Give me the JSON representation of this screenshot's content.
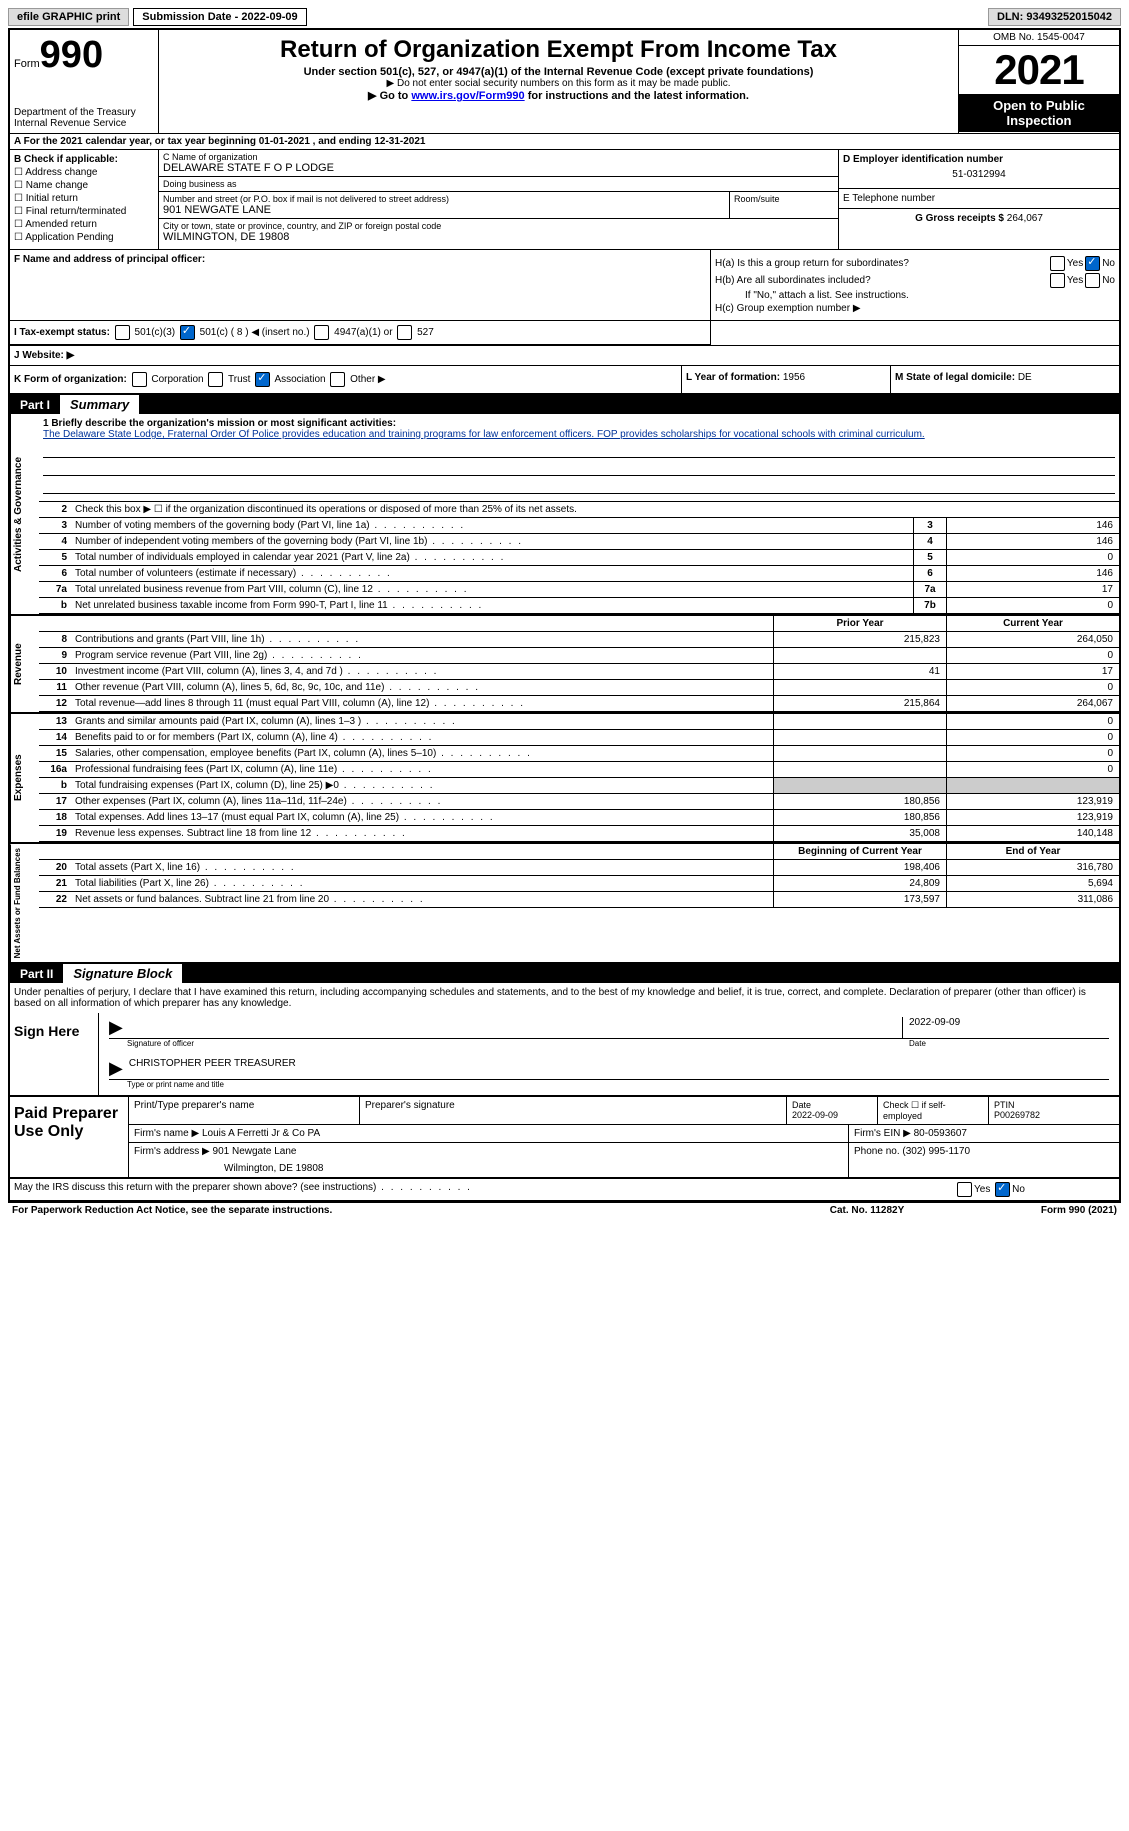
{
  "topbar": {
    "efile": "efile GRAPHIC print",
    "subdate_label": "Submission Date - ",
    "subdate": "2022-09-09",
    "dln_label": "DLN: ",
    "dln": "93493252015042"
  },
  "header": {
    "form_small": "Form",
    "form_big": "990",
    "dept": "Department of the Treasury\nInternal Revenue Service",
    "title": "Return of Organization Exempt From Income Tax",
    "sub1": "Under section 501(c), 527, or 4947(a)(1) of the Internal Revenue Code (except private foundations)",
    "sub2": "▶ Do not enter social security numbers on this form as it may be made public.",
    "sub3a": "▶ Go to ",
    "sub3b": "www.irs.gov/Form990",
    "sub3c": " for instructions and the latest information.",
    "omb": "OMB No. 1545-0047",
    "year": "2021",
    "open": "Open to Public Inspection"
  },
  "rowA": "A For the 2021 calendar year, or tax year beginning 01-01-2021   , and ending 12-31-2021",
  "colB": {
    "hdr": "B Check if applicable:",
    "items": [
      "Address change",
      "Name change",
      "Initial return",
      "Final return/terminated",
      "Amended return",
      "Application Pending"
    ]
  },
  "colC": {
    "name_lbl": "C Name of organization",
    "name": "DELAWARE STATE F O P LODGE",
    "dba_lbl": "Doing business as",
    "dba": "",
    "street_lbl": "Number and street (or P.O. box if mail is not delivered to street address)",
    "street": "901 NEWGATE LANE",
    "room_lbl": "Room/suite",
    "city_lbl": "City or town, state or province, country, and ZIP or foreign postal code",
    "city": "WILMINGTON, DE   19808"
  },
  "colD": {
    "ein_lbl": "D Employer identification number",
    "ein": "51-0312994",
    "phone_lbl": "E Telephone number",
    "phone": "",
    "gross_lbl": "G Gross receipts $ ",
    "gross": "264,067"
  },
  "rowF": {
    "lbl": "F Name and address of principal officer:",
    "val": ""
  },
  "rowH": {
    "a": "H(a)  Is this a group return for subordinates?",
    "b": "H(b)  Are all subordinates included?",
    "note": "If \"No,\" attach a list. See instructions.",
    "c": "H(c)  Group exemption number ▶"
  },
  "rowI": {
    "lbl": "I   Tax-exempt status:",
    "opts": [
      "501(c)(3)",
      "501(c) ( 8 ) ◀ (insert no.)",
      "4947(a)(1) or",
      "527"
    ]
  },
  "rowJ": "J   Website: ▶",
  "rowK": {
    "lbl": "K Form of organization:",
    "opts": [
      "Corporation",
      "Trust",
      "Association",
      "Other ▶"
    ]
  },
  "rowL": {
    "lbl": "L Year of formation: ",
    "val": "1956"
  },
  "rowM": {
    "lbl": "M State of legal domicile: ",
    "val": "DE"
  },
  "part1": {
    "tag": "Part I",
    "title": "Summary"
  },
  "mission_lbl": "1   Briefly describe the organization's mission or most significant activities:",
  "mission": "The Delaware State Lodge, Fraternal Order Of Police provides education and training programs for law enforcement officers. FOP provides scholarships for vocational schools with criminal curriculum.",
  "line2": "Check this box ▶ ☐ if the organization discontinued its operations or disposed of more than 25% of its net assets.",
  "gov_rows": [
    {
      "no": "3",
      "txt": "Number of voting members of the governing body (Part VI, line 1a)",
      "box": "3",
      "val": "146"
    },
    {
      "no": "4",
      "txt": "Number of independent voting members of the governing body (Part VI, line 1b)",
      "box": "4",
      "val": "146"
    },
    {
      "no": "5",
      "txt": "Total number of individuals employed in calendar year 2021 (Part V, line 2a)",
      "box": "5",
      "val": "0"
    },
    {
      "no": "6",
      "txt": "Total number of volunteers (estimate if necessary)",
      "box": "6",
      "val": "146"
    },
    {
      "no": "7a",
      "txt": "Total unrelated business revenue from Part VIII, column (C), line 12",
      "box": "7a",
      "val": "17"
    },
    {
      "no": "b",
      "txt": "Net unrelated business taxable income from Form 990-T, Part I, line 11",
      "box": "7b",
      "val": "0"
    }
  ],
  "fin_hdr": {
    "prior": "Prior Year",
    "curr": "Current Year"
  },
  "rev_rows": [
    {
      "no": "8",
      "txt": "Contributions and grants (Part VIII, line 1h)",
      "prior": "215,823",
      "curr": "264,050"
    },
    {
      "no": "9",
      "txt": "Program service revenue (Part VIII, line 2g)",
      "prior": "",
      "curr": "0"
    },
    {
      "no": "10",
      "txt": "Investment income (Part VIII, column (A), lines 3, 4, and 7d )",
      "prior": "41",
      "curr": "17"
    },
    {
      "no": "11",
      "txt": "Other revenue (Part VIII, column (A), lines 5, 6d, 8c, 9c, 10c, and 11e)",
      "prior": "",
      "curr": "0"
    },
    {
      "no": "12",
      "txt": "Total revenue—add lines 8 through 11 (must equal Part VIII, column (A), line 12)",
      "prior": "215,864",
      "curr": "264,067"
    }
  ],
  "exp_rows": [
    {
      "no": "13",
      "txt": "Grants and similar amounts paid (Part IX, column (A), lines 1–3 )",
      "prior": "",
      "curr": "0"
    },
    {
      "no": "14",
      "txt": "Benefits paid to or for members (Part IX, column (A), line 4)",
      "prior": "",
      "curr": "0"
    },
    {
      "no": "15",
      "txt": "Salaries, other compensation, employee benefits (Part IX, column (A), lines 5–10)",
      "prior": "",
      "curr": "0"
    },
    {
      "no": "16a",
      "txt": "Professional fundraising fees (Part IX, column (A), line 11e)",
      "prior": "",
      "curr": "0"
    },
    {
      "no": "b",
      "txt": "Total fundraising expenses (Part IX, column (D), line 25) ▶0",
      "prior": "GRAY",
      "curr": "GRAY"
    },
    {
      "no": "17",
      "txt": "Other expenses (Part IX, column (A), lines 11a–11d, 11f–24e)",
      "prior": "180,856",
      "curr": "123,919"
    },
    {
      "no": "18",
      "txt": "Total expenses. Add lines 13–17 (must equal Part IX, column (A), line 25)",
      "prior": "180,856",
      "curr": "123,919"
    },
    {
      "no": "19",
      "txt": "Revenue less expenses. Subtract line 18 from line 12",
      "prior": "35,008",
      "curr": "140,148"
    }
  ],
  "net_hdr": {
    "prior": "Beginning of Current Year",
    "curr": "End of Year"
  },
  "net_rows": [
    {
      "no": "20",
      "txt": "Total assets (Part X, line 16)",
      "prior": "198,406",
      "curr": "316,780"
    },
    {
      "no": "21",
      "txt": "Total liabilities (Part X, line 26)",
      "prior": "24,809",
      "curr": "5,694"
    },
    {
      "no": "22",
      "txt": "Net assets or fund balances. Subtract line 21 from line 20",
      "prior": "173,597",
      "curr": "311,086"
    }
  ],
  "part2": {
    "tag": "Part II",
    "title": "Signature Block"
  },
  "sig_text": "Under penalties of perjury, I declare that I have examined this return, including accompanying schedules and statements, and to the best of my knowledge and belief, it is true, correct, and complete. Declaration of preparer (other than officer) is based on all information of which preparer has any knowledge.",
  "sign_here": "Sign Here",
  "sig_officer_lbl": "Signature of officer",
  "sig_date": "2022-09-09",
  "sig_date_lbl": "Date",
  "sig_name": "CHRISTOPHER PEER TREASURER",
  "sig_name_lbl": "Type or print name and title",
  "paid_prep": "Paid Preparer Use Only",
  "prep": {
    "r1": {
      "a": "Print/Type preparer's name",
      "b": "Preparer's signature",
      "c": "Date\n2022-09-09",
      "d": "Check ☐ if self-employed",
      "e": "PTIN\nP00269782"
    },
    "r2": {
      "a": "Firm's name      ▶ ",
      "b": "Louis A Ferretti Jr & Co PA",
      "c": "Firm's EIN ▶ ",
      "d": "80-0593607"
    },
    "r3": {
      "a": "Firm's address ▶ ",
      "b": "901 Newgate Lane",
      "c": "Phone no. ",
      "d": "(302) 995-1170"
    },
    "r3b": "Wilmington, DE   19808"
  },
  "footer_q": "May the IRS discuss this return with the preparer shown above? (see instructions)",
  "bottom": {
    "l": "For Paperwork Reduction Act Notice, see the separate instructions.",
    "m": "Cat. No. 11282Y",
    "r": "Form 990 (2021)"
  },
  "vlabels": {
    "gov": "Activities & Governance",
    "rev": "Revenue",
    "exp": "Expenses",
    "net": "Net Assets or Fund Balances"
  }
}
